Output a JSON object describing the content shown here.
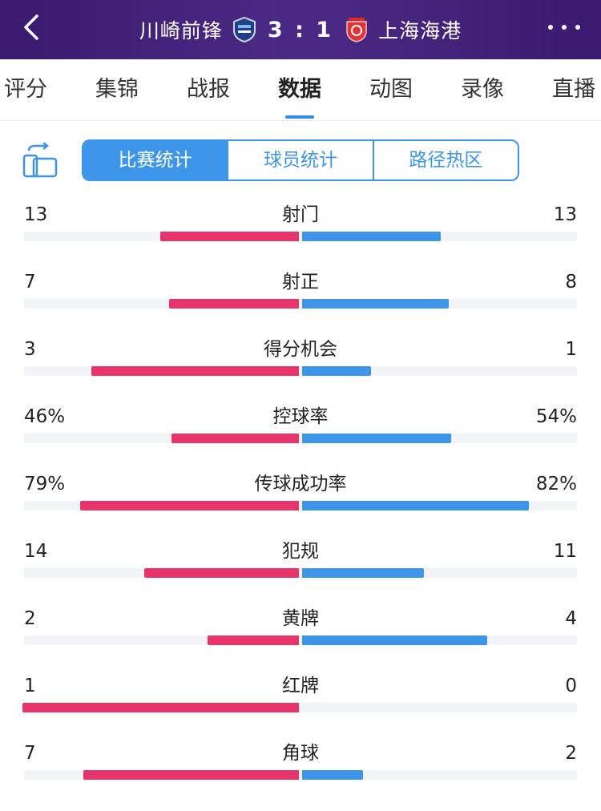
{
  "header": {
    "home_team": "川崎前锋",
    "score": "3 : 1",
    "away_team": "上海海港"
  },
  "tabs": [
    {
      "label": "评分"
    },
    {
      "label": "集锦"
    },
    {
      "label": "战报"
    },
    {
      "label": "数据",
      "active": true
    },
    {
      "label": "动图"
    },
    {
      "label": "录像"
    },
    {
      "label": "直播"
    }
  ],
  "segments": [
    {
      "label": "比赛统计",
      "active": true
    },
    {
      "label": "球员统计"
    },
    {
      "label": "路径热区"
    }
  ],
  "colors": {
    "home": "#e8336b",
    "away": "#3d95ea",
    "header": "#4b2a86"
  },
  "stats": [
    {
      "label": "射门",
      "home": "13",
      "away": "13",
      "home_bar": 0.5,
      "away_bar": 0.5
    },
    {
      "label": "射正",
      "home": "7",
      "away": "8",
      "home_bar": 0.47,
      "away_bar": 0.53
    },
    {
      "label": "得分机会",
      "home": "3",
      "away": "1",
      "home_bar": 0.75,
      "away_bar": 0.25
    },
    {
      "label": "控球率",
      "home": "46%",
      "away": "54%",
      "home_bar": 0.46,
      "away_bar": 0.54
    },
    {
      "label": "传球成功率",
      "home": "79%",
      "away": "82%",
      "home_bar": 0.79,
      "away_bar": 0.82
    },
    {
      "label": "犯规",
      "home": "14",
      "away": "11",
      "home_bar": 0.56,
      "away_bar": 0.44
    },
    {
      "label": "黄牌",
      "home": "2",
      "away": "4",
      "home_bar": 0.33,
      "away_bar": 0.67
    },
    {
      "label": "红牌",
      "home": "1",
      "away": "0",
      "home_bar": 1.0,
      "away_bar": 0.0
    },
    {
      "label": "角球",
      "home": "7",
      "away": "2",
      "home_bar": 0.78,
      "away_bar": 0.22
    }
  ]
}
